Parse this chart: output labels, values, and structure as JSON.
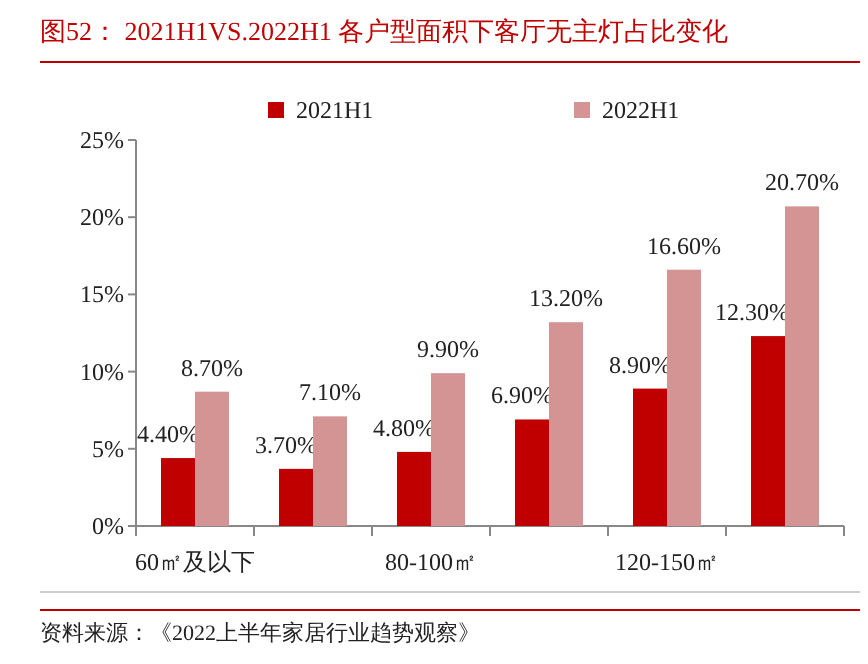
{
  "chart_data": {
    "type": "bar",
    "title": "图52：  2021H1VS.2022H1 各户型面积下客厅无主灯占比变化",
    "categories": [
      "60㎡及以下",
      null,
      "80-100㎡",
      null,
      "120-150㎡",
      null
    ],
    "series": [
      {
        "name": "2021H1",
        "color": "#c00000",
        "values": [
          4.4,
          3.7,
          4.8,
          6.9,
          8.9,
          12.3
        ],
        "value_labels": [
          "4.40%",
          "3.70%",
          "4.80%",
          "6.90%",
          "8.90%",
          "12.30%"
        ]
      },
      {
        "name": "2022H1",
        "color": "#d49494",
        "values": [
          8.7,
          7.1,
          9.9,
          13.2,
          16.6,
          20.7
        ],
        "value_labels": [
          "8.70%",
          "7.10%",
          "9.90%",
          "13.20%",
          "16.60%",
          "20.70%"
        ]
      }
    ],
    "ylim": [
      0,
      25
    ],
    "yticks": [
      {
        "value": 0,
        "label": "0%"
      },
      {
        "value": 5,
        "label": "5%"
      },
      {
        "value": 10,
        "label": "10%"
      },
      {
        "value": 15,
        "label": "15%"
      },
      {
        "value": 20,
        "label": "20%"
      },
      {
        "value": 25,
        "label": "25%"
      }
    ],
    "grid": false,
    "legend": "top",
    "annotations": [
      "资料来源：《2022上半年家居行业趋势观察》"
    ]
  }
}
